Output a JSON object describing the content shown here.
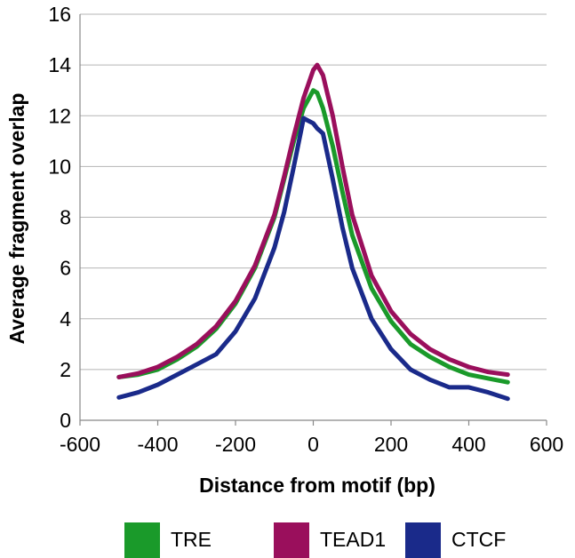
{
  "chart_data": {
    "type": "line",
    "title": "",
    "xlabel": "Distance from motif (bp)",
    "ylabel": "Average fragment overlap",
    "xlim": [
      -600,
      600
    ],
    "ylim": [
      0,
      16
    ],
    "xticks": [
      -600,
      -400,
      -200,
      0,
      200,
      400,
      600
    ],
    "yticks": [
      0,
      2,
      4,
      6,
      8,
      10,
      12,
      14,
      16
    ],
    "grid": "horizontal",
    "legend_position": "bottom",
    "x": [
      -500,
      -450,
      -400,
      -350,
      -300,
      -250,
      -200,
      -150,
      -100,
      -75,
      -50,
      -25,
      0,
      10,
      25,
      50,
      75,
      100,
      150,
      200,
      250,
      300,
      350,
      400,
      450,
      500
    ],
    "series": [
      {
        "name": "TRE",
        "color": "#1a9a2a",
        "values": [
          1.7,
          1.8,
          2.0,
          2.4,
          2.9,
          3.6,
          4.6,
          6.0,
          8.0,
          9.5,
          11.0,
          12.3,
          13.0,
          12.9,
          12.3,
          10.8,
          9.0,
          7.3,
          5.2,
          3.9,
          3.0,
          2.5,
          2.1,
          1.8,
          1.65,
          1.5
        ]
      },
      {
        "name": "TEAD1",
        "color": "#9a0f5c",
        "values": [
          1.7,
          1.85,
          2.1,
          2.5,
          3.0,
          3.7,
          4.7,
          6.1,
          8.1,
          9.6,
          11.2,
          12.7,
          13.8,
          14.0,
          13.6,
          12.0,
          10.0,
          8.1,
          5.7,
          4.3,
          3.4,
          2.8,
          2.4,
          2.1,
          1.9,
          1.8
        ]
      },
      {
        "name": "CTCF",
        "color": "#1a2a8a",
        "values": [
          0.9,
          1.1,
          1.4,
          1.8,
          2.2,
          2.6,
          3.5,
          4.8,
          6.8,
          8.2,
          10.0,
          11.9,
          11.7,
          11.5,
          11.3,
          9.5,
          7.6,
          6.0,
          4.0,
          2.8,
          2.0,
          1.6,
          1.3,
          1.3,
          1.1,
          0.85
        ]
      }
    ]
  }
}
